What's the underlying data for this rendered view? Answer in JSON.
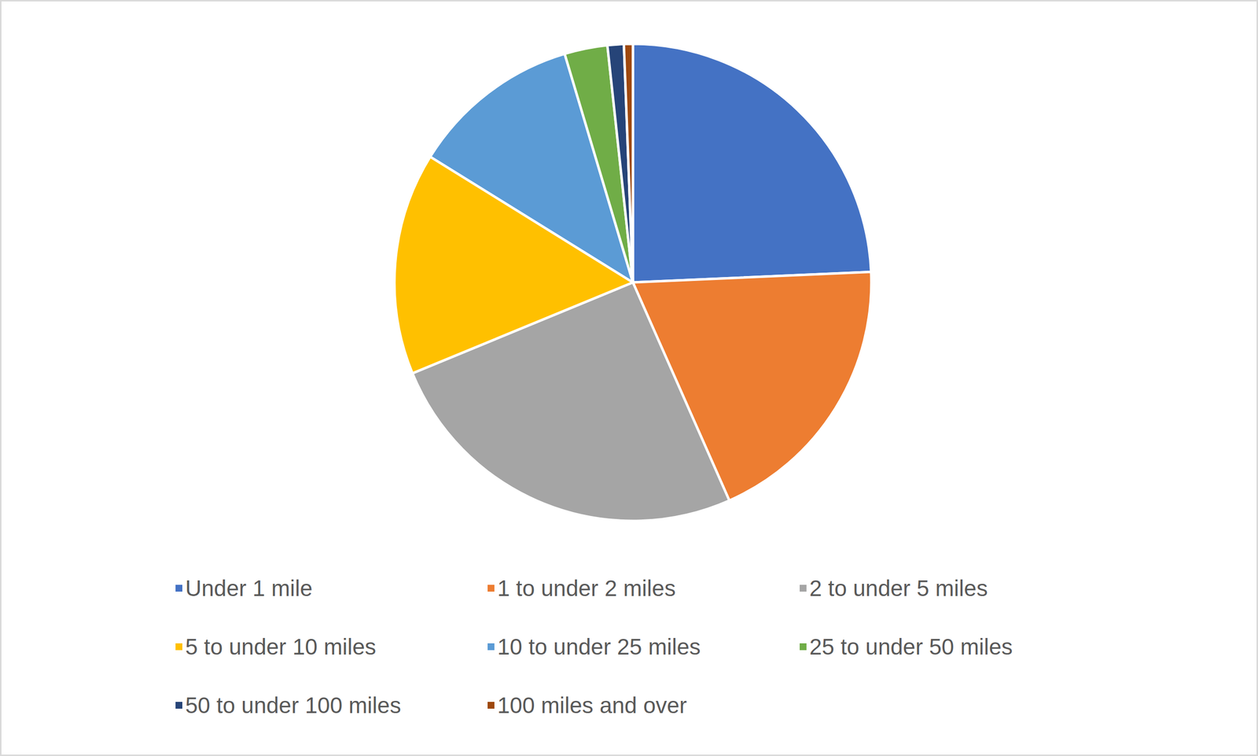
{
  "chart_data": {
    "type": "pie",
    "categories": [
      "Under 1 mile",
      "1 to under 2 miles",
      "2 to under 5 miles",
      "5 to under 10 miles",
      "10 to under 25 miles",
      "25 to under 50 miles",
      "50 to under 100 miles",
      "100 miles and over"
    ],
    "values": [
      24.2,
      19.0,
      25.3,
      15.0,
      11.5,
      2.9,
      1.1,
      0.6
    ],
    "colors": [
      "#4472c4",
      "#ed7d31",
      "#a5a5a5",
      "#ffc000",
      "#5b9bd5",
      "#70ad47",
      "#264478",
      "#9e480e"
    ],
    "legend": "bottom",
    "data_labels": false
  }
}
